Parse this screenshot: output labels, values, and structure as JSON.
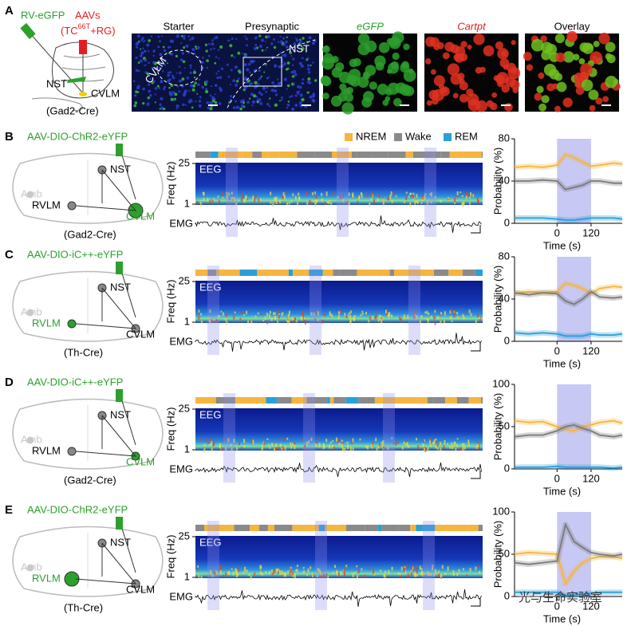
{
  "figure": {
    "panel_a": {
      "label": "A",
      "virus": "RV-eGFP",
      "aavs": "AAVs",
      "aavs_pre": "(TC",
      "aavs_sup": "66T",
      "aavs_post": "+RG)",
      "nst": "NST",
      "cvlm": "CVLM",
      "mouse": "(Gad2-Cre)",
      "images": [
        {
          "title": "Starter",
          "color": "#000000"
        },
        {
          "title": "Presynaptic",
          "color": "#000000"
        },
        {
          "title": "eGFP",
          "color": "#2ca02c"
        },
        {
          "title": "Cartpt",
          "color": "#e02020"
        },
        {
          "title": "Overlay",
          "color": "#000000"
        }
      ],
      "image_labels": [
        "CVLM",
        "NST"
      ]
    },
    "legend": [
      {
        "name": "NREM",
        "color": "#f5b53f"
      },
      {
        "name": "Wake",
        "color": "#8a8a8a"
      },
      {
        "name": "REM",
        "color": "#2a9fd8"
      }
    ],
    "eeg": "EEG",
    "emg": "EMG",
    "freq_label": "Freq (Hz)",
    "freq_ticks": [
      25,
      1
    ],
    "panels": [
      {
        "label": "B",
        "virus": "AAV-DIO-ChR2-eYFP",
        "mouse": "(Gad2-Cre)",
        "nodes": [
          {
            "label": "NST",
            "color": "#000000"
          },
          {
            "label": "RVLM",
            "color": "#000000"
          },
          {
            "label": "CVLM",
            "color": "#2ca02c"
          },
          {
            "label": "Amb",
            "color": "#c8c8c8"
          }
        ]
      },
      {
        "label": "C",
        "virus": "AAV-DIO-iC++-eYFP",
        "mouse": "(Th-Cre)",
        "nodes": [
          {
            "label": "NST",
            "color": "#000000"
          },
          {
            "label": "RVLM",
            "color": "#2ca02c"
          },
          {
            "label": "CVLM",
            "color": "#000000"
          },
          {
            "label": "Amb",
            "color": "#c8c8c8"
          }
        ]
      },
      {
        "label": "D",
        "virus": "AAV-DIO-iC++-eYFP",
        "mouse": "(Gad2-Cre)",
        "nodes": [
          {
            "label": "NST",
            "color": "#000000"
          },
          {
            "label": "RVLM",
            "color": "#000000"
          },
          {
            "label": "CVLM",
            "color": "#2ca02c"
          },
          {
            "label": "Amb",
            "color": "#c8c8c8"
          }
        ]
      },
      {
        "label": "E",
        "virus": "AAV-DIO-ChR2-eYFP",
        "mouse": "(Th-Cre)",
        "nodes": [
          {
            "label": "NST",
            "color": "#000000"
          },
          {
            "label": "RVLM",
            "color": "#2ca02c"
          },
          {
            "label": "CVLM",
            "color": "#000000"
          },
          {
            "label": "Amb",
            "color": "#c8c8c8"
          }
        ]
      }
    ],
    "watermark": "光与生命实验室"
  },
  "chart_data": [
    {
      "type": "line",
      "ylabel": "Probability (%)",
      "xlabel": "Time (s)",
      "xlim": [
        -150,
        230
      ],
      "xticks": [
        0,
        120
      ],
      "ylim": [
        0,
        80
      ],
      "yticks": [
        0,
        40,
        80
      ],
      "shade": [
        0,
        120
      ],
      "x": [
        -150,
        -100,
        -50,
        0,
        30,
        60,
        90,
        120,
        150,
        200,
        230
      ],
      "series": [
        {
          "name": "NREM",
          "color": "#f5b53f",
          "values": [
            53,
            54,
            53,
            55,
            65,
            62,
            58,
            54,
            55,
            57,
            56
          ]
        },
        {
          "name": "Wake",
          "color": "#7a7a7a",
          "values": [
            40,
            40,
            41,
            40,
            32,
            34,
            36,
            40,
            40,
            38,
            38
          ]
        },
        {
          "name": "REM",
          "color": "#2a9fd8",
          "values": [
            5,
            5,
            5,
            4,
            3,
            3,
            4,
            5,
            5,
            5,
            4
          ]
        }
      ]
    },
    {
      "type": "line",
      "ylabel": "Probability (%)",
      "xlabel": "Time (s)",
      "xlim": [
        -150,
        230
      ],
      "xticks": [
        0,
        120
      ],
      "ylim": [
        0,
        80
      ],
      "yticks": [
        0,
        40,
        80
      ],
      "shade": [
        0,
        120
      ],
      "x": [
        -150,
        -100,
        -50,
        0,
        30,
        60,
        90,
        120,
        150,
        200,
        230
      ],
      "series": [
        {
          "name": "NREM",
          "color": "#f5b53f",
          "values": [
            45,
            47,
            46,
            47,
            55,
            53,
            50,
            45,
            50,
            52,
            51
          ]
        },
        {
          "name": "Wake",
          "color": "#7a7a7a",
          "values": [
            46,
            44,
            46,
            45,
            38,
            35,
            40,
            47,
            42,
            41,
            42
          ]
        },
        {
          "name": "REM",
          "color": "#2a9fd8",
          "values": [
            8,
            7,
            8,
            7,
            5,
            5,
            5,
            7,
            6,
            6,
            7
          ]
        }
      ]
    },
    {
      "type": "line",
      "ylabel": "Probability (%)",
      "xlabel": "Time (s)",
      "xlim": [
        -150,
        230
      ],
      "xticks": [
        0,
        120
      ],
      "ylim": [
        0,
        100
      ],
      "yticks": [
        0,
        50,
        100
      ],
      "shade": [
        0,
        120
      ],
      "x": [
        -150,
        -100,
        -50,
        0,
        30,
        60,
        90,
        120,
        150,
        200,
        230
      ],
      "series": [
        {
          "name": "NREM",
          "color": "#f5b53f",
          "values": [
            57,
            55,
            56,
            50,
            47,
            45,
            50,
            52,
            55,
            57,
            54
          ]
        },
        {
          "name": "Wake",
          "color": "#7a7a7a",
          "values": [
            38,
            40,
            40,
            45,
            50,
            52,
            48,
            45,
            40,
            38,
            40
          ]
        },
        {
          "name": "REM",
          "color": "#2a9fd8",
          "values": [
            2,
            2,
            2,
            3,
            2,
            2,
            2,
            2,
            2,
            1,
            2
          ]
        }
      ]
    },
    {
      "type": "line",
      "ylabel": "Probability (%)",
      "xlabel": "Time (s)",
      "xlim": [
        -150,
        230
      ],
      "xticks": [
        0,
        120
      ],
      "ylim": [
        0,
        100
      ],
      "yticks": [
        0,
        50,
        100
      ],
      "shade": [
        0,
        120
      ],
      "x": [
        -150,
        -100,
        -50,
        0,
        30,
        60,
        90,
        120,
        150,
        200,
        230
      ],
      "series": [
        {
          "name": "NREM",
          "color": "#f5b53f",
          "values": [
            50,
            52,
            51,
            50,
            15,
            30,
            40,
            45,
            47,
            47,
            45
          ]
        },
        {
          "name": "Wake",
          "color": "#7a7a7a",
          "values": [
            40,
            38,
            40,
            42,
            85,
            65,
            58,
            52,
            50,
            48,
            50
          ]
        },
        {
          "name": "REM",
          "color": "#2a9fd8",
          "values": [
            5,
            5,
            5,
            5,
            1,
            2,
            3,
            4,
            5,
            5,
            5
          ]
        }
      ]
    }
  ]
}
